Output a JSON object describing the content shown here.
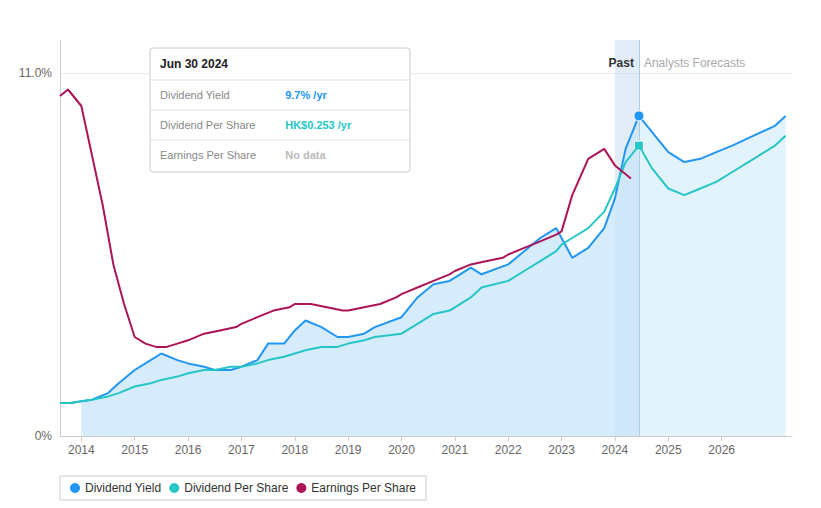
{
  "chart_data": {
    "type": "line",
    "xlim": [
      2013.6,
      2027.3
    ],
    "xticks": [
      2014,
      2015,
      2016,
      2017,
      2018,
      2019,
      2020,
      2021,
      2022,
      2023,
      2024,
      2025,
      2026
    ],
    "ylim": [
      0.0,
      12.0
    ],
    "yticks": [
      {
        "value": 0,
        "label": "0%"
      },
      {
        "value": 11.0,
        "label": "11.0%"
      }
    ],
    "grid": true,
    "legend": "bottom-left",
    "series": [
      {
        "name": "Dividend Yield",
        "color": "#2196F3",
        "highlight": {
          "x": 2024.45,
          "marker": "circle"
        },
        "x": [
          2013.6,
          2013.8,
          2014.0,
          2014.2,
          2014.5,
          2014.7,
          2015.0,
          2015.3,
          2015.5,
          2015.8,
          2016.0,
          2016.3,
          2016.5,
          2016.8,
          2017.0,
          2017.3,
          2017.5,
          2017.8,
          2018.0,
          2018.2,
          2018.5,
          2018.8,
          2019.0,
          2019.3,
          2019.5,
          2020.0,
          2020.3,
          2020.6,
          2020.9,
          2021.0,
          2021.3,
          2021.5,
          2022.0,
          2022.3,
          2022.6,
          2022.9,
          2023.0,
          2023.2,
          2023.5,
          2023.8,
          2024.0,
          2024.2,
          2024.45,
          2024.7,
          2025.0,
          2025.3,
          2025.6,
          2025.9,
          2026.2,
          2026.6,
          2027.0,
          2027.2
        ],
        "values": [
          1.0,
          1.0,
          1.05,
          1.1,
          1.3,
          1.6,
          2.0,
          2.3,
          2.5,
          2.3,
          2.2,
          2.1,
          2.0,
          2.0,
          2.1,
          2.3,
          2.8,
          2.8,
          3.2,
          3.5,
          3.3,
          3.0,
          3.0,
          3.1,
          3.3,
          3.6,
          4.2,
          4.6,
          4.7,
          4.8,
          5.1,
          4.9,
          5.2,
          5.6,
          6.0,
          6.3,
          6.0,
          5.4,
          5.7,
          6.3,
          7.2,
          8.7,
          9.7,
          9.2,
          8.6,
          8.3,
          8.4,
          8.6,
          8.8,
          9.1,
          9.4,
          9.7
        ]
      },
      {
        "name": "Dividend Per Share",
        "color": "#26C6C6",
        "highlight": {
          "x": 2024.45,
          "marker": "square"
        },
        "x": [
          2013.6,
          2013.8,
          2014.0,
          2014.2,
          2014.5,
          2014.7,
          2015.0,
          2015.3,
          2015.5,
          2015.8,
          2016.0,
          2016.3,
          2016.5,
          2016.8,
          2017.0,
          2017.3,
          2017.5,
          2017.8,
          2018.0,
          2018.2,
          2018.5,
          2018.8,
          2019.0,
          2019.3,
          2019.5,
          2020.0,
          2020.3,
          2020.6,
          2020.9,
          2021.0,
          2021.3,
          2021.5,
          2022.0,
          2022.3,
          2022.6,
          2022.9,
          2023.0,
          2023.2,
          2023.5,
          2023.8,
          2024.0,
          2024.2,
          2024.45,
          2024.7,
          2025.0,
          2025.3,
          2025.6,
          2025.9,
          2026.2,
          2026.6,
          2027.0,
          2027.2
        ],
        "values": [
          1.0,
          1.0,
          1.05,
          1.1,
          1.2,
          1.3,
          1.5,
          1.6,
          1.7,
          1.8,
          1.9,
          2.0,
          2.0,
          2.1,
          2.1,
          2.2,
          2.3,
          2.4,
          2.5,
          2.6,
          2.7,
          2.7,
          2.8,
          2.9,
          3.0,
          3.1,
          3.4,
          3.7,
          3.8,
          3.9,
          4.2,
          4.5,
          4.7,
          5.0,
          5.3,
          5.6,
          5.8,
          6.0,
          6.3,
          6.8,
          7.5,
          8.3,
          8.8,
          8.1,
          7.5,
          7.3,
          7.5,
          7.7,
          8.0,
          8.4,
          8.8,
          9.1
        ]
      },
      {
        "name": "Earnings Per Share",
        "color": "#AD1457",
        "x": [
          2013.6,
          2013.75,
          2014.0,
          2014.2,
          2014.4,
          2014.6,
          2014.8,
          2015.0,
          2015.2,
          2015.4,
          2015.6,
          2015.8,
          2016.0,
          2016.3,
          2016.6,
          2016.9,
          2017.0,
          2017.3,
          2017.6,
          2017.9,
          2018.0,
          2018.3,
          2018.6,
          2018.9,
          2019.0,
          2019.3,
          2019.6,
          2019.9,
          2020.0,
          2020.3,
          2020.6,
          2020.9,
          2021.0,
          2021.3,
          2021.6,
          2021.9,
          2022.0,
          2022.3,
          2022.6,
          2022.9,
          2023.0,
          2023.2,
          2023.5,
          2023.8,
          2024.0,
          2024.3
        ],
        "values": [
          10.3,
          10.5,
          10.0,
          8.5,
          7.0,
          5.2,
          4.0,
          3.0,
          2.8,
          2.7,
          2.7,
          2.8,
          2.9,
          3.1,
          3.2,
          3.3,
          3.4,
          3.6,
          3.8,
          3.9,
          4.0,
          4.0,
          3.9,
          3.8,
          3.8,
          3.9,
          4.0,
          4.2,
          4.3,
          4.5,
          4.7,
          4.9,
          5.0,
          5.2,
          5.3,
          5.4,
          5.5,
          5.7,
          5.9,
          6.1,
          6.2,
          7.3,
          8.4,
          8.7,
          8.2,
          7.8
        ]
      }
    ],
    "fill": {
      "series": "Dividend Yield",
      "start_x": 2013.9,
      "past_color": "#C8E6FA",
      "future_color": "#DCF0FA"
    },
    "divider": {
      "x": 2024.45,
      "color": "#A8CCE8",
      "left_label": "Past",
      "right_label": "Analysts Forecasts"
    },
    "shaded_span": {
      "from": 2024.0,
      "to": 2024.45,
      "color": "#C8DDEF"
    },
    "tooltip_box": {
      "title": "Jun 30 2024",
      "rows": [
        {
          "label": "Dividend Yield",
          "value": "9.7% /yr",
          "color": "#2196F3"
        },
        {
          "label": "Dividend Per Share",
          "value": "HK$0.253 /yr",
          "color": "#26C6C6"
        },
        {
          "label": "Earnings Per Share",
          "value": "No data",
          "color": "#BBBBBB"
        }
      ]
    }
  }
}
